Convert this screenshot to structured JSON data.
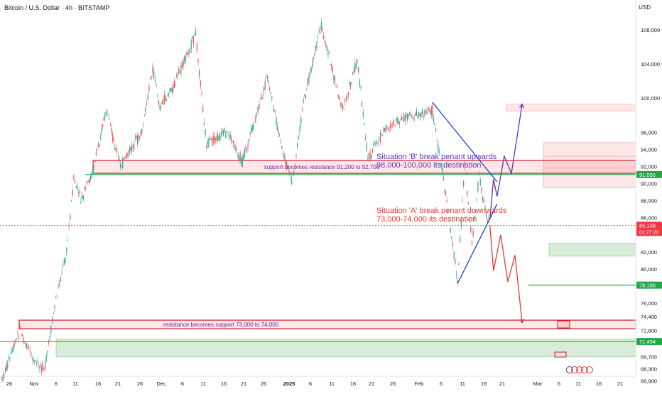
{
  "header": {
    "title": "Bitcoin / U.S. Dollar · 4h · BITSTAMP",
    "currency": "USD"
  },
  "chart_data": {
    "type": "candlestick",
    "title": "Bitcoin / U.S. Dollar · 4h · BITSTAMP",
    "y_axis": {
      "position": "right",
      "ticks": [
        108000,
        104000,
        100000,
        96000,
        94000,
        92000,
        90000,
        88000,
        86000,
        82000,
        80000,
        78000,
        76000,
        74400,
        72800,
        69700,
        68300,
        66900
      ],
      "tick_labels": [
        "108,000",
        "104,000",
        "100,000",
        "96,000",
        "94,000",
        "92,000",
        "90,000",
        "88,000",
        "86,000",
        "82,000",
        "80,000",
        "78,000",
        "76,000",
        "74,400",
        "72,800",
        "69,700",
        "68,300",
        "66,900"
      ],
      "range": [
        65500,
        110500
      ]
    },
    "x_axis": {
      "tick_labels": [
        "26",
        "Nov",
        "6",
        "11",
        "16",
        "21",
        "26",
        "Dec",
        "6",
        "11",
        "16",
        "21",
        "26",
        "2025",
        "6",
        "11",
        "16",
        "21",
        "26",
        "Feb",
        "6",
        "11",
        "16",
        "21",
        "Mar",
        "6",
        "11",
        "16",
        "21"
      ]
    },
    "price_path": [
      [
        "2024-10-24",
        67000
      ],
      [
        "2024-10-29",
        72800
      ],
      [
        "2024-11-02",
        69000
      ],
      [
        "2024-11-05",
        68500
      ],
      [
        "2024-11-08",
        76500
      ],
      [
        "2024-11-11",
        82000
      ],
      [
        "2024-11-13",
        90500
      ],
      [
        "2024-11-15",
        88000
      ],
      [
        "2024-11-18",
        91000
      ],
      [
        "2024-11-22",
        98500
      ],
      [
        "2024-11-26",
        92000
      ],
      [
        "2024-12-02",
        96000
      ],
      [
        "2024-12-05",
        103500
      ],
      [
        "2024-12-07",
        99000
      ],
      [
        "2024-12-11",
        101500
      ],
      [
        "2024-12-17",
        107500
      ],
      [
        "2024-12-20",
        94500
      ],
      [
        "2024-12-26",
        96000
      ],
      [
        "2024-12-30",
        92500
      ],
      [
        "2025-01-03",
        98000
      ],
      [
        "2025-01-06",
        102500
      ],
      [
        "2025-01-10",
        94000
      ],
      [
        "2025-01-13",
        90000
      ],
      [
        "2025-01-16",
        99500
      ],
      [
        "2025-01-21",
        108500
      ],
      [
        "2025-01-27",
        98500
      ],
      [
        "2025-01-31",
        104500
      ],
      [
        "2025-02-03",
        93000
      ],
      [
        "2025-02-08",
        96500
      ],
      [
        "2025-02-14",
        97800
      ],
      [
        "2025-02-21",
        98500
      ],
      [
        "2025-02-25",
        88000
      ],
      [
        "2025-02-28",
        78500
      ],
      [
        "2025-03-02",
        92500
      ],
      [
        "2025-03-04",
        83000
      ],
      [
        "2025-03-06",
        91000
      ],
      [
        "2025-03-08",
        86000
      ],
      [
        "2025-03-09",
        85108
      ]
    ],
    "levels": [
      {
        "kind": "line",
        "price": 91055,
        "color": "#22a847",
        "label": "91,055"
      },
      {
        "kind": "line",
        "price": 78106,
        "color": "#22a847",
        "label": "78,106"
      },
      {
        "kind": "line",
        "price": 71494,
        "color": "#22a847",
        "label": "71,494"
      },
      {
        "kind": "line",
        "price": 85108,
        "color": "#f23645",
        "label": "85,108",
        "sublabel": "01:27:20",
        "style": "dotted"
      }
    ],
    "zones": [
      {
        "type": "resistance",
        "from": 91200,
        "to": 92700,
        "label": "support becomes resistance 91,200 to 92,700",
        "color": "#f23645"
      },
      {
        "type": "support",
        "from": 73000,
        "to": 74000,
        "label": "resistance becomes support 73,000 to 74,000",
        "color": "#f23645"
      },
      {
        "type": "demand",
        "from": 69700,
        "to": 71800,
        "color": "#4caf50"
      },
      {
        "type": "supply",
        "from": 98500,
        "to": 99300,
        "color": "#f23645"
      },
      {
        "type": "supply",
        "from": 89500,
        "to": 94800,
        "color": "#f23645"
      },
      {
        "type": "demand",
        "from": 81500,
        "to": 83000,
        "color": "#4caf50"
      }
    ],
    "annotations": [
      {
        "lines": [
          "Situation 'B' break penant upwards",
          "98,000-100,000 its destination"
        ],
        "color": "#5e35b1"
      },
      {
        "lines": [
          "Situation 'A' break penant downwards",
          "73,000-74,000 its destination"
        ],
        "color": "#e53935"
      }
    ],
    "projections": [
      {
        "scenario": "B",
        "color": "#5e35b1",
        "path": [
          [
            "2025-03-09",
            85800
          ],
          [
            "2025-03-10",
            90500
          ],
          [
            "2025-03-11",
            88500
          ],
          [
            "2025-03-13",
            93200
          ],
          [
            "2025-03-15",
            91200
          ],
          [
            "2025-03-18",
            99300
          ]
        ]
      },
      {
        "scenario": "A",
        "color": "#e53935",
        "path": [
          [
            "2025-03-09",
            85100
          ],
          [
            "2025-03-10",
            79800
          ],
          [
            "2025-03-12",
            84000
          ],
          [
            "2025-03-14",
            78500
          ],
          [
            "2025-03-16",
            81600
          ],
          [
            "2025-03-18",
            73700
          ]
        ]
      }
    ],
    "pennant": [
      {
        "from": [
          "2025-02-21",
          99500
        ],
        "to": [
          "2025-03-11",
          90200
        ]
      },
      {
        "from": [
          "2025-02-28",
          78300
        ],
        "to": [
          "2025-03-11",
          87600
        ]
      }
    ],
    "grid": false
  }
}
